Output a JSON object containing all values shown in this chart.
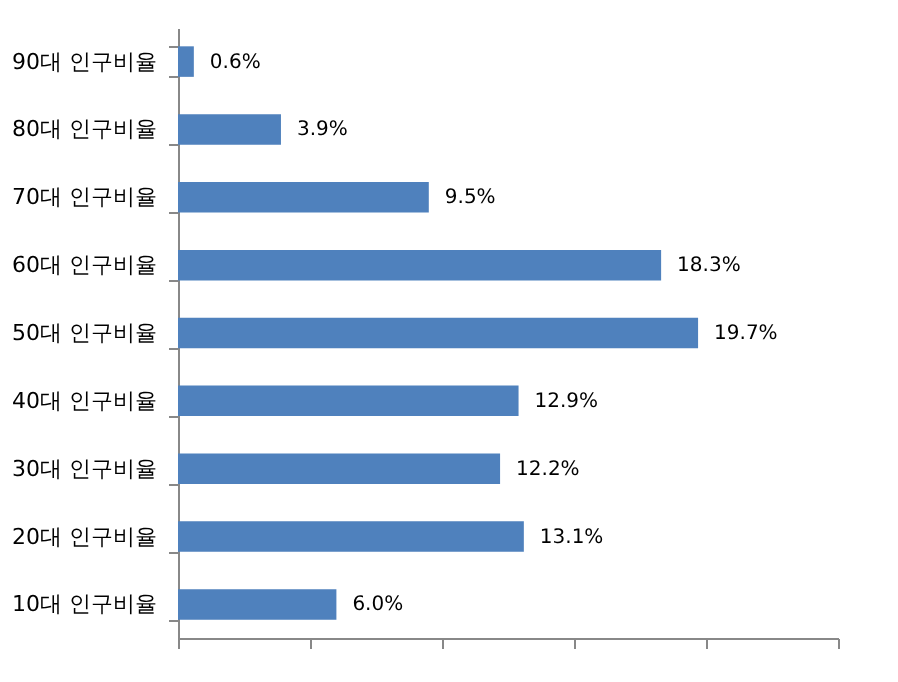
{
  "chart_data": {
    "type": "bar",
    "orientation": "horizontal",
    "categories": [
      "90대 인구비율",
      "80대 인구비율",
      "70대 인구비율",
      "60대 인구비율",
      "50대 인구비율",
      "40대 인구비율",
      "30대 인구비율",
      "20대 인구비율",
      "10대 인구비율"
    ],
    "values": [
      0.6,
      3.9,
      9.5,
      18.3,
      19.7,
      12.9,
      12.2,
      13.1,
      6.0
    ],
    "value_labels": [
      "0.6%",
      "3.9%",
      "9.5%",
      "18.3%",
      "19.7%",
      "12.9%",
      "12.2%",
      "13.1%",
      "6.0%"
    ],
    "color": "#4f81bd",
    "xlim": [
      0,
      25
    ],
    "xticks": [
      {
        "value": 0,
        "label": null
      },
      {
        "value": 5,
        "label": null
      },
      {
        "value": 10,
        "label": null
      },
      {
        "value": 15,
        "label": null
      },
      {
        "value": 20,
        "label": null
      },
      {
        "value": 25,
        "label": null
      }
    ],
    "tick_labels": "y",
    "grid": false
  }
}
